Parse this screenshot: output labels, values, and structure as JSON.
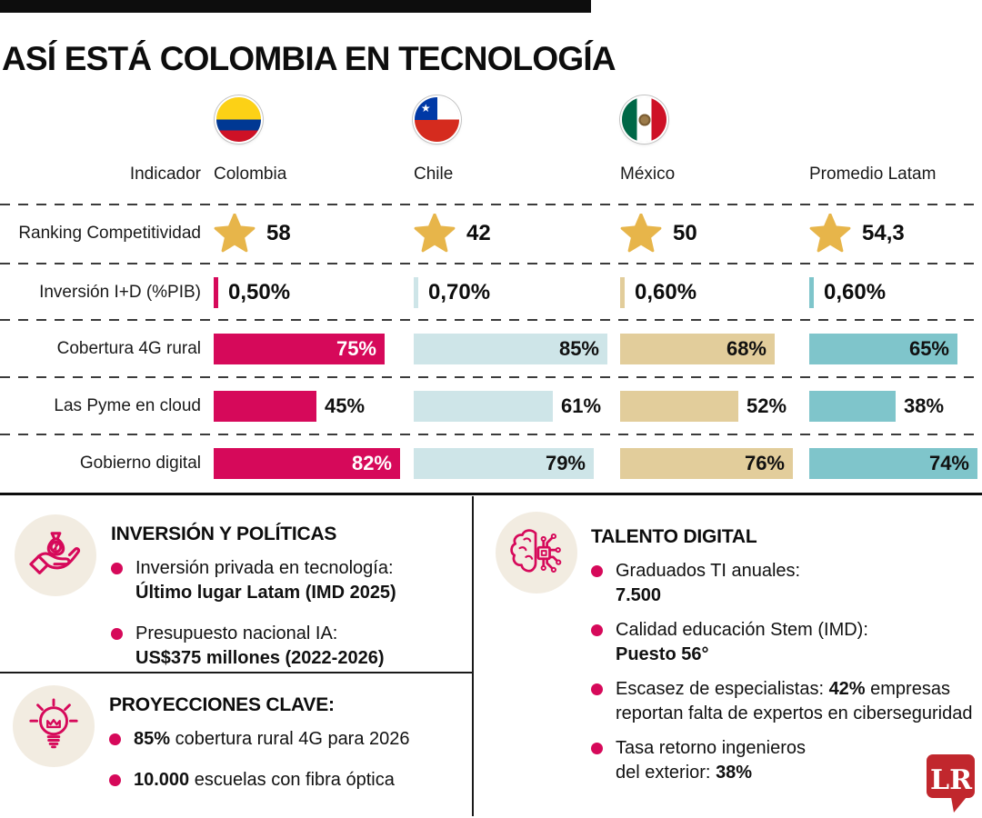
{
  "title": "ASÍ ESTÁ COLOMBIA EN TECNOLOGÍA",
  "colors": {
    "accent": "#D6095A",
    "chile": "#CEE5E8",
    "mexico": "#E2CD9B",
    "latam": "#7FC5CB",
    "series": [
      "#D6095A",
      "#CEE5E8",
      "#E2CD9B",
      "#7FC5CB"
    ],
    "star": "#E7B54A",
    "icon_bg": "#F2ECE1",
    "logo_red": "#C1272D",
    "ink": "#0D0D0D"
  },
  "table": {
    "indicator_header": "Indicador"
  },
  "chart_data": {
    "type": "table",
    "title": "ASÍ ESTÁ COLOMBIA EN TECNOLOGÍA",
    "columns": [
      "Colombia",
      "Chile",
      "México",
      "Promedio Latam"
    ],
    "flags": [
      "colombia-flag-icon",
      "chile-flag-icon",
      "mexico-flag-icon"
    ],
    "rows": [
      {
        "indicator": "Ranking Competitividad",
        "style": "star",
        "values": [
          58,
          42,
          50,
          54.3
        ],
        "display": [
          "58",
          "42",
          "50",
          "54,3"
        ]
      },
      {
        "indicator": "Inversión I+D (%PIB)",
        "style": "tick",
        "values": [
          0.5,
          0.7,
          0.6,
          0.6
        ],
        "display": [
          "0,50%",
          "0,70%",
          "0,60%",
          "0,60%"
        ]
      },
      {
        "indicator": "Cobertura 4G rural",
        "style": "bar",
        "values": [
          75,
          85,
          68,
          65
        ],
        "display": [
          "75%",
          "85%",
          "68%",
          "65%"
        ]
      },
      {
        "indicator": "Las Pyme en cloud",
        "style": "bar",
        "values": [
          45,
          61,
          52,
          38
        ],
        "display": [
          "45%",
          "61%",
          "52%",
          "38%"
        ]
      },
      {
        "indicator": "Gobierno digital",
        "style": "bar",
        "values": [
          82,
          79,
          76,
          74
        ],
        "display": [
          "82%",
          "79%",
          "76%",
          "74%"
        ]
      }
    ]
  },
  "sections": {
    "inversion": {
      "title": "INVERSIÓN Y POLÍTICAS",
      "icon": "money-hand-icon",
      "bullets": [
        [
          {
            "t": "Inversión privada en tecnología:\n"
          },
          {
            "t": "Último lugar Latam (IMD 2025)",
            "b": true
          }
        ],
        [
          {
            "t": "Presupuesto nacional IA:\n"
          },
          {
            "t": "US$375 millones (2022-2026)",
            "b": true
          }
        ]
      ]
    },
    "proyecciones": {
      "title": "PROYECCIONES CLAVE:",
      "icon": "lightbulb-icon",
      "bullets": [
        [
          {
            "t": "85%",
            "b": true
          },
          {
            "t": " cobertura rural 4G para 2026"
          }
        ],
        [
          {
            "t": "10.000",
            "b": true
          },
          {
            "t": " escuelas con fibra óptica"
          }
        ]
      ]
    },
    "talento": {
      "title": "TALENTO DIGITAL",
      "icon": "brain-circuit-icon",
      "bullets": [
        [
          {
            "t": "Graduados TI anuales:\n"
          },
          {
            "t": "7.500",
            "b": true
          }
        ],
        [
          {
            "t": "Calidad educación Stem (IMD):\n"
          },
          {
            "t": "Puesto 56°",
            "b": true
          }
        ],
        [
          {
            "t": "Escasez de especialistas: "
          },
          {
            "t": "42%",
            "b": true
          },
          {
            "t": " empresas\nreportan falta de expertos en ciberseguridad"
          }
        ],
        [
          {
            "t": "Tasa retorno ingenieros\ndel exterior: "
          },
          {
            "t": "38%",
            "b": true
          }
        ]
      ]
    }
  },
  "logo": {
    "text": "LR"
  }
}
